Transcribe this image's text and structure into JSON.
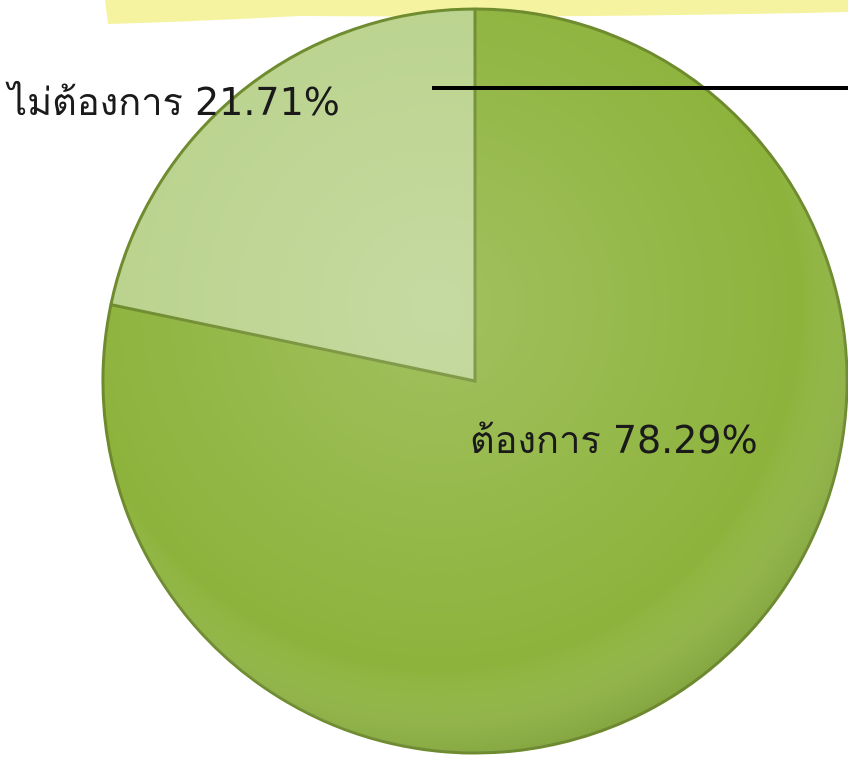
{
  "chart_data": {
    "type": "pie",
    "categories": [
      "ต้องการ",
      "ไม่ต้องการ"
    ],
    "values": [
      78.29,
      21.71
    ],
    "value_labels": [
      "78.29%",
      "21.71%"
    ],
    "colors": [
      "#8db33c",
      "#b9d28c"
    ]
  }
}
